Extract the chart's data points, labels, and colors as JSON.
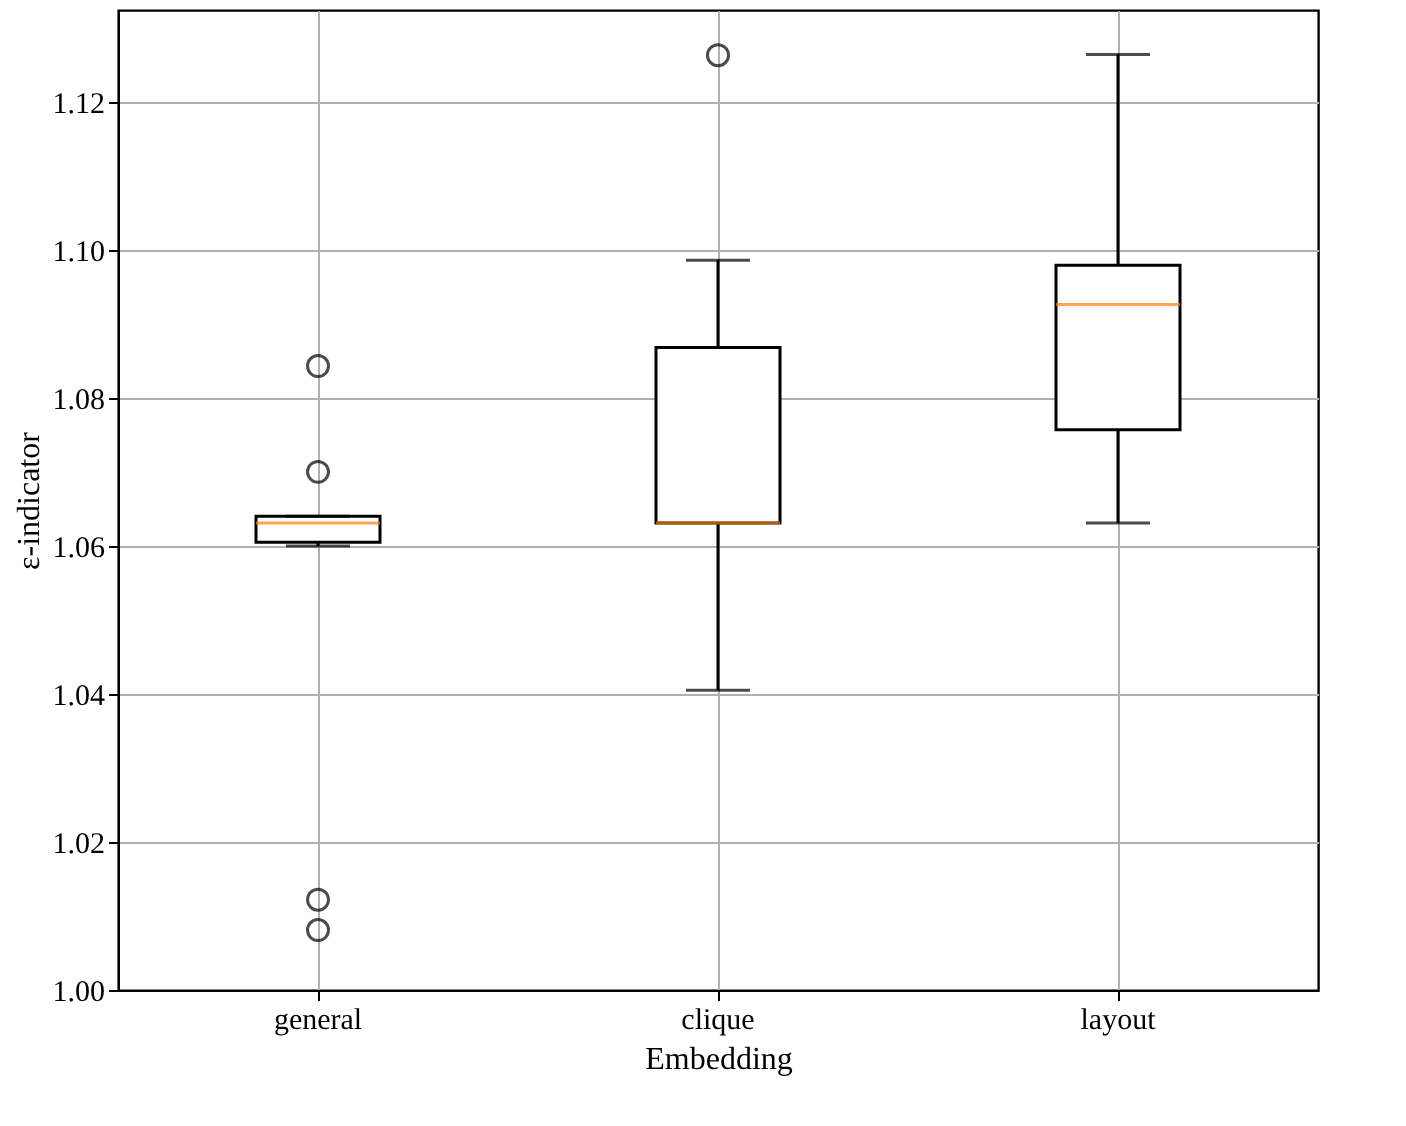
{
  "chart_data": {
    "type": "box",
    "xlabel": "Embedding",
    "ylabel": "ε-indicator",
    "categories": [
      "general",
      "clique",
      "layout"
    ],
    "boxes": [
      {
        "low": 1.06,
        "q1": 1.0605,
        "median": 1.0631,
        "q3": 1.064,
        "high": 1.064,
        "outliers": [
          1.0843,
          1.07,
          1.0122,
          1.0081
        ]
      },
      {
        "low": 1.0405,
        "q1": 1.0631,
        "median": 1.0631,
        "q3": 1.0868,
        "high": 1.0986,
        "outliers": [
          1.1263
        ]
      },
      {
        "low": 1.0631,
        "q1": 1.0757,
        "median": 1.0926,
        "q3": 1.0979,
        "high": 1.1264
      }
    ],
    "color": "#000000",
    "ylim": [
      1.0,
      1.1324
    ],
    "yticks": [
      {
        "value": 1.0,
        "label": "1.00"
      },
      {
        "value": 1.02,
        "label": "1.02"
      },
      {
        "value": 1.04,
        "label": "1.04"
      },
      {
        "value": 1.06,
        "label": "1.06"
      },
      {
        "value": 1.08,
        "label": "1.08"
      },
      {
        "value": 1.1,
        "label": "1.10"
      },
      {
        "value": 1.12,
        "label": "1.12"
      }
    ],
    "grid": true,
    "marker": "circle"
  }
}
